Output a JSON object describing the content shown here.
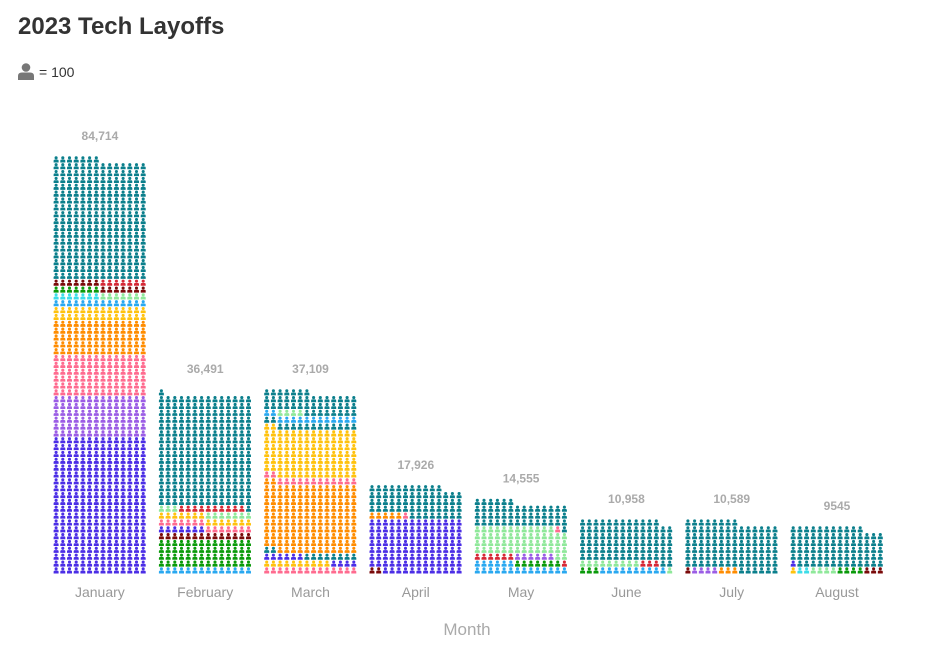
{
  "chart_data": {
    "type": "pictogram",
    "title": "2023 Tech Layoffs",
    "legend": {
      "unit_label": "= 100",
      "icon": "person-icon",
      "icon_color": "#777777"
    },
    "xlabel": "Month",
    "icon_value": 100,
    "icons_per_row": 14,
    "colors": {
      "teal": "#0b7f8c",
      "blue": "#4b2ee6",
      "violet": "#9b5de5",
      "pink": "#ff6b8f",
      "orange": "#ff8c00",
      "yellow": "#ffc20e",
      "cyan": "#29a8f0",
      "lightcyan": "#3ddde8",
      "lightgreen": "#8fe89a",
      "green": "#0a9a0a",
      "darkred": "#7a0a0a",
      "red": "#d62836"
    },
    "categories": [
      "January",
      "February",
      "March",
      "April",
      "May",
      "June",
      "July",
      "August"
    ],
    "values": [
      84714,
      36491,
      37109,
      17926,
      14555,
      10958,
      10589,
      9545
    ],
    "value_labels": [
      "84,714",
      "36,491",
      "37,109",
      "17,926",
      "14,555",
      "10,958",
      "10,589",
      "9545"
    ],
    "segments": [
      [
        [
          "blue",
          28000
        ],
        [
          "violet",
          8400
        ],
        [
          "pink",
          8400
        ],
        [
          "orange",
          7000
        ],
        [
          "yellow",
          2800
        ],
        [
          "cyan",
          1400
        ],
        [
          "lightcyan",
          700
        ],
        [
          "lightgreen",
          700
        ],
        [
          "green",
          700
        ],
        [
          "darkred",
          1400
        ],
        [
          "red",
          700
        ],
        [
          "teal",
          24500
        ]
      ],
      [
        [
          "cyan",
          1400
        ],
        [
          "green",
          5600
        ],
        [
          "darkred",
          1400
        ],
        [
          "blue",
          700
        ],
        [
          "pink",
          1400
        ],
        [
          "yellow",
          1400
        ],
        [
          "lightgreen",
          1000
        ],
        [
          "red",
          1000
        ],
        [
          "teal",
          22600
        ]
      ],
      [
        [
          "pink",
          1400
        ],
        [
          "yellow",
          1000
        ],
        [
          "blue",
          1000
        ],
        [
          "teal",
          1000
        ],
        [
          "orange",
          14000
        ],
        [
          "pink",
          1400
        ],
        [
          "yellow",
          9800
        ],
        [
          "teal",
          1400
        ],
        [
          "cyan",
          1400
        ],
        [
          "lightgreen",
          400
        ],
        [
          "teal",
          4300
        ]
      ],
      [
        [
          "darkred",
          200
        ],
        [
          "blue",
          11000
        ],
        [
          "orange",
          500
        ],
        [
          "pink",
          100
        ],
        [
          "teal",
          6100
        ]
      ],
      [
        [
          "cyan",
          2000
        ],
        [
          "green",
          700
        ],
        [
          "red",
          700
        ],
        [
          "violet",
          600
        ],
        [
          "lightgreen",
          5600
        ],
        [
          "pink",
          100
        ],
        [
          "teal",
          4900
        ]
      ],
      [
        [
          "green",
          300
        ],
        [
          "cyan",
          1000
        ],
        [
          "lightgreen",
          1000
        ],
        [
          "red",
          300
        ],
        [
          "teal",
          8400
        ]
      ],
      [
        [
          "darkred",
          100
        ],
        [
          "violet",
          400
        ],
        [
          "orange",
          300
        ],
        [
          "teal",
          9800
        ]
      ],
      [
        [
          "yellow",
          100
        ],
        [
          "lightcyan",
          200
        ],
        [
          "lightgreen",
          400
        ],
        [
          "green",
          400
        ],
        [
          "darkred",
          300
        ],
        [
          "blue",
          100
        ],
        [
          "teal",
          8000
        ]
      ]
    ]
  }
}
